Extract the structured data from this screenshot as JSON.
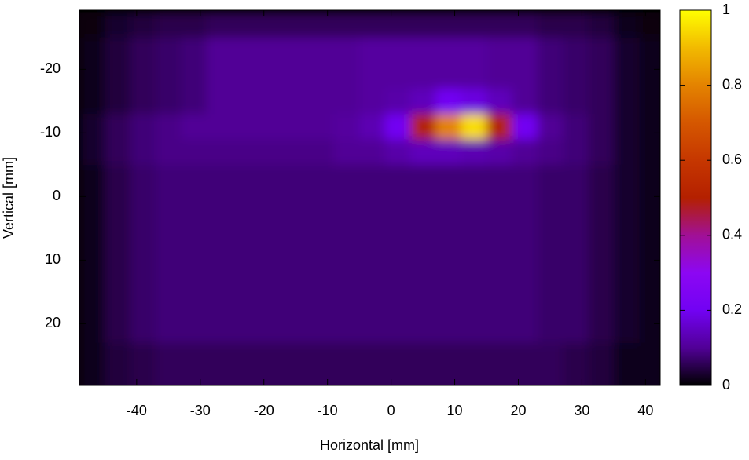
{
  "chart_data": {
    "type": "heatmap",
    "xlabel": "Horizontal [mm]",
    "ylabel": "Vertical [mm]",
    "x": [
      -47,
      -43,
      -39,
      -35,
      -31,
      -27,
      -23,
      -19,
      -15,
      -11,
      -7,
      -3,
      1,
      5,
      9,
      13,
      17,
      21,
      25,
      29,
      33,
      37,
      41
    ],
    "y": [
      -27,
      -23,
      -19,
      -15,
      -11,
      -7,
      -3,
      1,
      5,
      9,
      13,
      17,
      21,
      25,
      29
    ],
    "z": [
      [
        0.01,
        0.03,
        0.04,
        0.05,
        0.05,
        0.06,
        0.06,
        0.06,
        0.06,
        0.06,
        0.06,
        0.06,
        0.06,
        0.06,
        0.06,
        0.06,
        0.06,
        0.06,
        0.05,
        0.05,
        0.04,
        0.02,
        0.01
      ],
      [
        0.02,
        0.04,
        0.06,
        0.07,
        0.08,
        0.1,
        0.1,
        0.1,
        0.1,
        0.1,
        0.1,
        0.11,
        0.11,
        0.11,
        0.11,
        0.11,
        0.1,
        0.1,
        0.08,
        0.07,
        0.06,
        0.03,
        0.02
      ],
      [
        0.02,
        0.04,
        0.06,
        0.07,
        0.08,
        0.1,
        0.1,
        0.1,
        0.1,
        0.1,
        0.1,
        0.11,
        0.11,
        0.11,
        0.11,
        0.11,
        0.1,
        0.1,
        0.08,
        0.07,
        0.06,
        0.03,
        0.02
      ],
      [
        0.02,
        0.04,
        0.06,
        0.07,
        0.08,
        0.1,
        0.1,
        0.1,
        0.1,
        0.1,
        0.1,
        0.11,
        0.12,
        0.14,
        0.2,
        0.18,
        0.14,
        0.1,
        0.08,
        0.07,
        0.06,
        0.03,
        0.02
      ],
      [
        0.03,
        0.06,
        0.08,
        0.09,
        0.1,
        0.1,
        0.1,
        0.1,
        0.1,
        0.1,
        0.11,
        0.13,
        0.2,
        0.5,
        0.8,
        0.95,
        0.5,
        0.2,
        0.1,
        0.08,
        0.06,
        0.03,
        0.02
      ],
      [
        0.03,
        0.06,
        0.08,
        0.09,
        0.09,
        0.09,
        0.09,
        0.09,
        0.09,
        0.09,
        0.1,
        0.1,
        0.12,
        0.14,
        0.14,
        0.13,
        0.12,
        0.1,
        0.09,
        0.08,
        0.06,
        0.03,
        0.02
      ],
      [
        0.02,
        0.05,
        0.07,
        0.08,
        0.08,
        0.08,
        0.08,
        0.08,
        0.08,
        0.08,
        0.08,
        0.08,
        0.08,
        0.08,
        0.08,
        0.08,
        0.08,
        0.08,
        0.07,
        0.07,
        0.05,
        0.03,
        0.02
      ],
      [
        0.02,
        0.05,
        0.07,
        0.08,
        0.08,
        0.08,
        0.08,
        0.08,
        0.08,
        0.08,
        0.08,
        0.08,
        0.08,
        0.08,
        0.08,
        0.08,
        0.08,
        0.08,
        0.07,
        0.07,
        0.05,
        0.03,
        0.02
      ],
      [
        0.02,
        0.05,
        0.07,
        0.08,
        0.08,
        0.08,
        0.08,
        0.08,
        0.08,
        0.08,
        0.08,
        0.08,
        0.08,
        0.08,
        0.08,
        0.08,
        0.08,
        0.08,
        0.07,
        0.07,
        0.05,
        0.03,
        0.02
      ],
      [
        0.02,
        0.05,
        0.07,
        0.08,
        0.08,
        0.08,
        0.08,
        0.08,
        0.08,
        0.08,
        0.08,
        0.08,
        0.08,
        0.08,
        0.08,
        0.08,
        0.08,
        0.08,
        0.07,
        0.07,
        0.05,
        0.03,
        0.02
      ],
      [
        0.02,
        0.05,
        0.07,
        0.08,
        0.08,
        0.08,
        0.08,
        0.08,
        0.08,
        0.08,
        0.08,
        0.08,
        0.08,
        0.08,
        0.08,
        0.08,
        0.08,
        0.08,
        0.07,
        0.07,
        0.05,
        0.03,
        0.02
      ],
      [
        0.02,
        0.05,
        0.07,
        0.08,
        0.08,
        0.08,
        0.08,
        0.08,
        0.08,
        0.08,
        0.08,
        0.08,
        0.08,
        0.08,
        0.08,
        0.08,
        0.08,
        0.08,
        0.07,
        0.07,
        0.05,
        0.03,
        0.02
      ],
      [
        0.02,
        0.05,
        0.07,
        0.08,
        0.08,
        0.08,
        0.08,
        0.08,
        0.08,
        0.08,
        0.08,
        0.08,
        0.08,
        0.08,
        0.08,
        0.08,
        0.08,
        0.08,
        0.07,
        0.07,
        0.05,
        0.03,
        0.02
      ],
      [
        0.02,
        0.04,
        0.05,
        0.06,
        0.06,
        0.06,
        0.06,
        0.06,
        0.06,
        0.06,
        0.06,
        0.06,
        0.06,
        0.06,
        0.06,
        0.06,
        0.06,
        0.06,
        0.06,
        0.05,
        0.04,
        0.02,
        0.02
      ],
      [
        0.02,
        0.04,
        0.05,
        0.06,
        0.06,
        0.06,
        0.06,
        0.06,
        0.06,
        0.06,
        0.06,
        0.06,
        0.06,
        0.06,
        0.06,
        0.06,
        0.06,
        0.06,
        0.06,
        0.05,
        0.04,
        0.02,
        0.02
      ]
    ],
    "xlim": [
      -49,
      42.3
    ],
    "xticks": [
      -40,
      -30,
      -20,
      -10,
      0,
      10,
      20,
      30,
      40
    ],
    "ylim": [
      -29.3,
      29.7
    ],
    "yreverse": true,
    "yticks": [
      -20,
      -10,
      0,
      10,
      20
    ],
    "cblim": [
      0,
      1
    ],
    "cbticks": [
      0,
      0.2,
      0.4,
      0.6,
      0.8,
      1
    ],
    "colormap": [
      "#000000",
      "#510096",
      "#7202f3",
      "#8c07f3",
      "#a11096",
      "#b42000",
      "#c63700",
      "#d55700",
      "#e48300",
      "#f2ba00",
      "#ffff00"
    ]
  }
}
